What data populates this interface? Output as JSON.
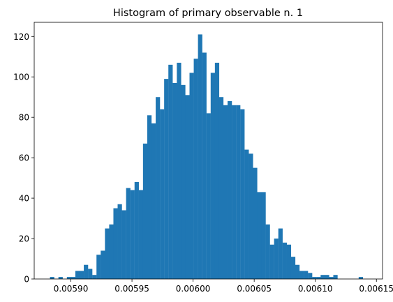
{
  "chart_data": {
    "type": "bar",
    "title": "Histogram of primary observable n. 1",
    "xlabel": "",
    "ylabel": "",
    "xlim": [
      0.00587,
      0.006155
    ],
    "ylim": [
      0,
      127
    ],
    "grid": false,
    "bar_color": "#1f77b4",
    "x_ticks": [
      0.0059,
      0.00595,
      0.006,
      0.00605,
      0.0061,
      0.00615
    ],
    "x_tick_labels": [
      "0.00590",
      "0.00595",
      "0.00600",
      "0.00605",
      "0.00610",
      "0.00615"
    ],
    "y_ticks": [
      0,
      20,
      40,
      60,
      80,
      100,
      120
    ],
    "y_tick_labels": [
      "0",
      "20",
      "40",
      "60",
      "80",
      "100",
      "120"
    ],
    "bin_start": 0.0058829,
    "bin_width": 3.46e-06,
    "counts": [
      1,
      0,
      1,
      0,
      1,
      1,
      4,
      4,
      7,
      5,
      2,
      12,
      14,
      25,
      27,
      35,
      37,
      34,
      45,
      44,
      48,
      44,
      67,
      81,
      77,
      90,
      84,
      99,
      106,
      97,
      107,
      96,
      91,
      102,
      109,
      121,
      112,
      82,
      102,
      107,
      90,
      86,
      88,
      86,
      86,
      84,
      64,
      62,
      55,
      43,
      43,
      27,
      17,
      20,
      25,
      18,
      17,
      11,
      7,
      4,
      4,
      3,
      1,
      1,
      2,
      2,
      1,
      2,
      0,
      0,
      0,
      0,
      0,
      1
    ]
  }
}
